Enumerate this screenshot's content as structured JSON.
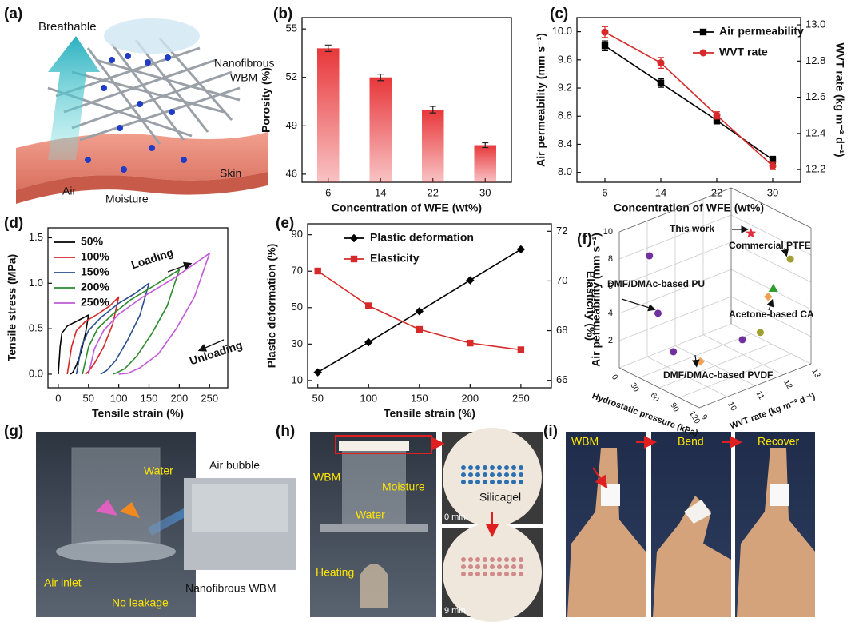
{
  "panel_a": {
    "label": "(a)",
    "breathable": "Breathable",
    "membrane": [
      "Nanofibrous",
      "WBM"
    ],
    "skin": "Skin",
    "air": "Air",
    "moisture": "Moisture"
  },
  "chart_data": [
    {
      "type": "bar",
      "label": "(b)",
      "xlabel": "Concentration of WFE (wt%)",
      "ylabel": "Porosity (%)",
      "categories": [
        "6",
        "14",
        "22",
        "30"
      ],
      "values": [
        53.8,
        52.0,
        50.0,
        47.8
      ],
      "errors": [
        0.2,
        0.2,
        0.2,
        0.15
      ],
      "color": "#e8373a",
      "ylim": [
        45.5,
        55.7
      ],
      "yticks": [
        46,
        49,
        52,
        55
      ]
    },
    {
      "type": "line",
      "label": "(c)",
      "xlabel": "Concentration of WFE (wt%)",
      "ylabel": "Air permeability (mm s⁻¹)",
      "y2label": "WVT rate (kg m⁻² d⁻¹)",
      "categories": [
        "6",
        "14",
        "22",
        "30"
      ],
      "ylim": [
        7.86,
        10.2
      ],
      "yticks": [
        {
          "value": 8.0,
          "label": "8.0"
        },
        8.4,
        8.8,
        9.2,
        9.6,
        {
          "value": 10.0,
          "label": "10.0"
        }
      ],
      "y2lim": [
        12.13,
        13.04
      ],
      "y2ticks": [
        12.2,
        12.4,
        12.6,
        12.8,
        {
          "value": 13.0,
          "label": "13.0"
        }
      ],
      "legend": "upper right",
      "series": [
        {
          "name": "Air permeability",
          "color": "#000000",
          "marker": "square",
          "values": [
            9.8,
            9.27,
            8.74,
            8.18
          ],
          "errors": [
            0.07,
            0.06,
            0.05,
            0.05
          ]
        },
        {
          "name": "WVT rate",
          "color": "#d62a2a",
          "marker": "circle",
          "axis": "y2",
          "values": [
            12.96,
            12.79,
            12.5,
            12.22
          ],
          "errors": [
            0.03,
            0.03,
            0.02,
            0.02
          ]
        }
      ]
    },
    {
      "type": "line",
      "label": "(d)",
      "xlabel": "Tensile strain (%)",
      "ylabel": "Tensile stress (MPa)",
      "xlim": [
        -17,
        280
      ],
      "xticks": [
        0,
        50,
        100,
        150,
        200,
        250
      ],
      "ylim": [
        -0.15,
        1.61
      ],
      "yticks": [
        {
          "value": 0,
          "label": "0.0"
        },
        0.5,
        {
          "value": 1,
          "label": "1.0"
        },
        1.5
      ],
      "legend": "upper left",
      "annotations": [
        "Loading",
        "Unloading"
      ],
      "series": [
        {
          "name": "50%",
          "color": "#000000",
          "x": [
            0,
            3,
            6,
            15,
            30,
            50,
            45,
            38,
            30,
            24,
            20
          ],
          "values": [
            0,
            0.3,
            0.45,
            0.53,
            0.58,
            0.65,
            0.45,
            0.25,
            0.1,
            0.02,
            0
          ]
        },
        {
          "name": "100%",
          "color": "#d62728",
          "x": [
            15,
            22,
            30,
            45,
            65,
            85,
            100,
            90,
            75,
            60,
            50,
            45
          ],
          "values": [
            0,
            0.3,
            0.48,
            0.58,
            0.66,
            0.75,
            0.85,
            0.55,
            0.3,
            0.12,
            0.03,
            0
          ]
        },
        {
          "name": "150%",
          "color": "#2a4d8f",
          "x": [
            30,
            38,
            50,
            70,
            100,
            125,
            150,
            135,
            115,
            95,
            80,
            70
          ],
          "values": [
            0,
            0.3,
            0.48,
            0.62,
            0.78,
            0.88,
            1.0,
            0.65,
            0.38,
            0.15,
            0.04,
            0
          ]
        },
        {
          "name": "200%",
          "color": "#2e8b2e",
          "x": [
            40,
            50,
            65,
            90,
            120,
            160,
            200,
            180,
            155,
            130,
            110,
            95,
            90
          ],
          "values": [
            0,
            0.3,
            0.5,
            0.66,
            0.82,
            0.98,
            1.15,
            0.75,
            0.45,
            0.2,
            0.06,
            0.01,
            0
          ]
        },
        {
          "name": "250%",
          "color": "#c05ad8",
          "x": [
            50,
            60,
            75,
            100,
            140,
            190,
            250,
            225,
            195,
            165,
            135,
            115,
            100
          ],
          "values": [
            0,
            0.28,
            0.48,
            0.66,
            0.85,
            1.05,
            1.33,
            0.85,
            0.5,
            0.22,
            0.07,
            0.01,
            0
          ]
        }
      ]
    },
    {
      "type": "line",
      "label": "(e)",
      "xlabel": "Tensile strain (%)",
      "ylabel": "Plastic deformation (%)",
      "y2label": "Elasticity (%)",
      "x": [
        50,
        100,
        150,
        200,
        250
      ],
      "xlim": [
        40,
        280
      ],
      "xticks": [
        50,
        100,
        150,
        200,
        250
      ],
      "ylim": [
        6,
        96
      ],
      "yticks": [
        10,
        30,
        50,
        70,
        90
      ],
      "y2lim": [
        65.7,
        72.3
      ],
      "y2ticks": [
        66,
        68,
        70,
        72
      ],
      "legend": "upper left",
      "series": [
        {
          "name": "Plastic deformation",
          "color": "#000000",
          "marker": "diamond",
          "values": [
            14.5,
            31,
            48,
            65,
            82
          ]
        },
        {
          "name": "Elasticity",
          "color": "#d62a2a",
          "marker": "square",
          "axis": "y2",
          "values": [
            70.4,
            69.0,
            68.05,
            67.5,
            67.23
          ]
        }
      ]
    },
    {
      "type": "scatter3d",
      "label": "(f)",
      "xlabel": "Hydrostatic pressure (kPa)",
      "ylabel": "WVT rate (kg m⁻² d⁻¹)",
      "zlabel": "Air permeability (mm s⁻¹)",
      "xlim": [
        0,
        120
      ],
      "xticks": [
        0,
        30,
        60,
        90,
        120
      ],
      "ylim": [
        9,
        13
      ],
      "yticks": [
        9,
        10,
        11,
        12,
        13
      ],
      "zlim": [
        0,
        10
      ],
      "zticks": [
        2,
        4,
        6,
        8,
        10
      ],
      "points": [
        {
          "x": 26,
          "y": 9.46,
          "z": 8.5,
          "color": "#7030a0",
          "marker": "circle"
        },
        {
          "x": 46,
          "y": 9.29,
          "z": 4.9,
          "color": "#7030a0",
          "marker": "circle",
          "label": "DMF/DMAc-based PU"
        },
        {
          "x": 59,
          "y": 9.53,
          "z": 2.2,
          "color": "#7030a0",
          "marker": "circle"
        },
        {
          "x": 105,
          "y": 10.9,
          "z": 3.1,
          "color": "#7030a0",
          "marker": "circle"
        },
        {
          "x": 82,
          "y": 9.95,
          "z": 1.7,
          "color": "#f0a050",
          "marker": "diamond",
          "label": "DMF/DMAc-based PVDF"
        },
        {
          "x": 116,
          "y": 11.28,
          "z": 3.6,
          "color": "#a0a030",
          "marker": "circle"
        },
        {
          "x": 116,
          "y": 11.56,
          "z": 6.0,
          "color": "#f0a050",
          "marker": "diamond",
          "label": "Acetone-based CA"
        },
        {
          "x": 115,
          "y": 11.77,
          "z": 6.4,
          "color": "#2e9e2e",
          "marker": "triangle"
        },
        {
          "x": 120,
          "y": 12.26,
          "z": 8.3,
          "color": "#a0a030",
          "marker": "circle",
          "label": "Commercial PTFE"
        },
        {
          "x": 85,
          "y": 11.68,
          "z": 9.8,
          "color": "#e03040",
          "marker": "star",
          "label": "This work"
        }
      ]
    }
  ],
  "panel_g": {
    "label": "(g)",
    "water": "Water",
    "air_bubble": "Air bubble",
    "air_inlet": "Air inlet",
    "no_leakage": "No leakage",
    "membrane": "Nanofibrous WBM"
  },
  "panel_h": {
    "label": "(h)",
    "wbm": "WBM",
    "moisture": "Moisture",
    "water": "Water",
    "heating": "Heating",
    "silicagel": "Silicagel",
    "start": "0 min",
    "end": "9 min"
  },
  "panel_i": {
    "label": "(i)",
    "wbm": "WBM",
    "bend": "Bend",
    "recover": "Recover"
  }
}
